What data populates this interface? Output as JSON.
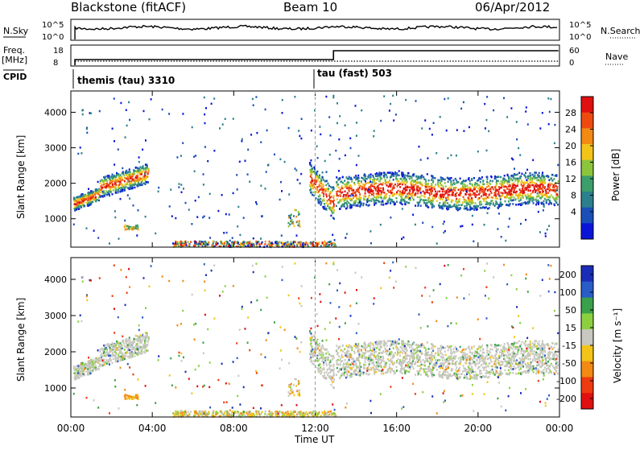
{
  "header": {
    "station": "Blackstone (fitACF)",
    "beam": "Beam 10",
    "date": "06/Apr/2012"
  },
  "top_panels": {
    "nsky_label": "N.Sky",
    "nsky_ticks": [
      "10^5",
      "10^0"
    ],
    "nsearch_label": "N.Search",
    "nsearch_ticks": [
      "10^5",
      "10^0"
    ],
    "freq_label": "Freq.",
    "freq_unit": "[MHz]",
    "freq_ticks": [
      "18",
      "8"
    ],
    "nave_label": "Nave",
    "nave_ticks": [
      "60",
      "0"
    ],
    "cpid_label": "CPID",
    "cpid_segments": [
      {
        "label": "themis (tau) 3310",
        "start_hour": 0.0
      },
      {
        "label": "tau (fast) 503",
        "start_hour": 12.0
      }
    ]
  },
  "chart_data": [
    {
      "type": "heatmap",
      "name": "power",
      "ylabel": "Slant Range [km]",
      "ylim": [
        200,
        4600
      ],
      "xlim": [
        0,
        24
      ],
      "yticks": [
        "1000",
        "2000",
        "3000",
        "4000"
      ],
      "colorbar_label": "Power [dB]",
      "colorbar_ticks": [
        "28",
        "24",
        "20",
        "16",
        "12",
        "8",
        "4"
      ],
      "colorscale": [
        "#0a14d8",
        "#1a4fb8",
        "#2c7f8c",
        "#3c9e6a",
        "#8cc43c",
        "#f2c41a",
        "#f28a14",
        "#ee4a10",
        "#e01010"
      ],
      "echo_bands": [
        {
          "t0": 0.1,
          "t1": 1.4,
          "r0": 1300,
          "r1": 1850,
          "center": "rising"
        },
        {
          "t0": 1.4,
          "t1": 3.8,
          "r0": 1700,
          "r1": 2500,
          "center": "rising"
        },
        {
          "t0": 11.7,
          "t1": 12.9,
          "r0": 1200,
          "r1": 2500,
          "center": "falling"
        },
        {
          "t0": 13.0,
          "t1": 23.9,
          "r0": 1400,
          "r1": 2700,
          "center": "flat"
        }
      ],
      "time_data": [
        3.5,
        0,
        0,
        0
      ]
    },
    {
      "type": "heatmap",
      "name": "velocity",
      "ylabel": "Slant Range [km]",
      "xlabel": "Time UT",
      "ylim": [
        200,
        4600
      ],
      "xlim": [
        0,
        24
      ],
      "xticks": [
        "00:00",
        "04:00",
        "08:00",
        "12:00",
        "16:00",
        "20:00",
        "00:00"
      ],
      "yticks": [
        "1000",
        "2000",
        "3000",
        "4000"
      ],
      "colorbar_label": "Velocity [m s⁻¹]",
      "colorbar_ticks": [
        "200",
        "100",
        "50",
        "15",
        "-15",
        "-50",
        "-100",
        "-200"
      ],
      "colorscale": [
        "#1a2db8",
        "#2a5cc8",
        "#3aa04a",
        "#8cd040",
        "#c8c8c0",
        "#f2c41a",
        "#f28a14",
        "#ee3a10",
        "#e01010"
      ]
    }
  ]
}
